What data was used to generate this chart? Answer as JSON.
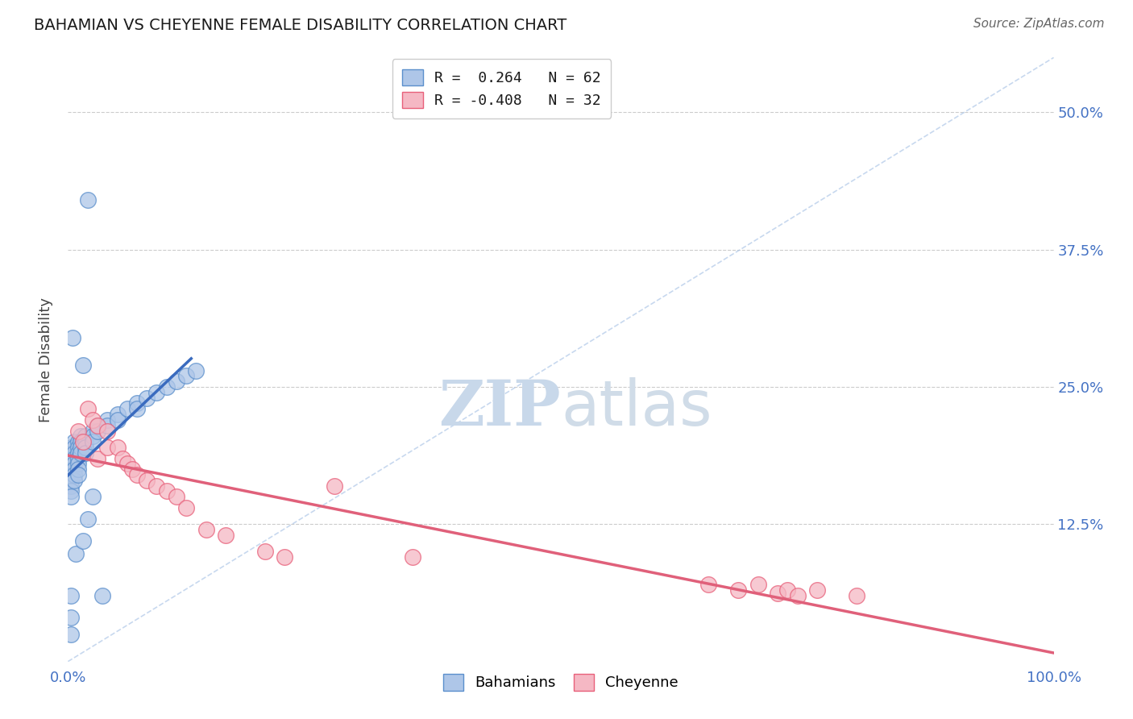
{
  "title": "BAHAMIAN VS CHEYENNE FEMALE DISABILITY CORRELATION CHART",
  "source": "Source: ZipAtlas.com",
  "ylabel": "Female Disability",
  "ytick_labels": [
    "50.0%",
    "37.5%",
    "25.0%",
    "12.5%"
  ],
  "ytick_values": [
    0.5,
    0.375,
    0.25,
    0.125
  ],
  "xlim": [
    0.0,
    1.0
  ],
  "ylim": [
    0.0,
    0.55
  ],
  "bahamian_R": 0.264,
  "bahamian_N": 62,
  "cheyenne_R": -0.408,
  "cheyenne_N": 32,
  "bahamian_color": "#aec6e8",
  "cheyenne_color": "#f5b8c4",
  "bahamian_edge_color": "#5b8fcc",
  "cheyenne_edge_color": "#e8607a",
  "bahamian_line_color": "#3a6bbf",
  "cheyenne_line_color": "#e0607a",
  "diagonal_color": "#b0c8e8",
  "background_color": "#ffffff",
  "watermark_zip": "ZIP",
  "watermark_atlas": "atlas",
  "legend_text_1": "R =  0.264   N = 62",
  "legend_text_2": "R = -0.408   N = 32",
  "bahamian_x": [
    0.003,
    0.003,
    0.003,
    0.003,
    0.003,
    0.003,
    0.003,
    0.003,
    0.003,
    0.003,
    0.006,
    0.006,
    0.006,
    0.006,
    0.006,
    0.006,
    0.006,
    0.006,
    0.01,
    0.01,
    0.01,
    0.01,
    0.01,
    0.01,
    0.01,
    0.013,
    0.013,
    0.013,
    0.013,
    0.018,
    0.018,
    0.018,
    0.018,
    0.025,
    0.025,
    0.025,
    0.03,
    0.03,
    0.04,
    0.04,
    0.05,
    0.05,
    0.06,
    0.07,
    0.07,
    0.08,
    0.09,
    0.1,
    0.11,
    0.12,
    0.13,
    0.02,
    0.005,
    0.008,
    0.003,
    0.003,
    0.003,
    0.015,
    0.015,
    0.02,
    0.025,
    0.035
  ],
  "bahamian_y": [
    0.195,
    0.19,
    0.185,
    0.18,
    0.175,
    0.17,
    0.165,
    0.16,
    0.155,
    0.15,
    0.2,
    0.195,
    0.19,
    0.185,
    0.18,
    0.175,
    0.17,
    0.165,
    0.2,
    0.195,
    0.19,
    0.185,
    0.18,
    0.175,
    0.17,
    0.205,
    0.2,
    0.195,
    0.19,
    0.205,
    0.2,
    0.195,
    0.19,
    0.21,
    0.205,
    0.2,
    0.215,
    0.21,
    0.22,
    0.215,
    0.225,
    0.22,
    0.23,
    0.235,
    0.23,
    0.24,
    0.245,
    0.25,
    0.255,
    0.26,
    0.265,
    0.42,
    0.295,
    0.098,
    0.06,
    0.04,
    0.025,
    0.27,
    0.11,
    0.13,
    0.15,
    0.06
  ],
  "cheyenne_x": [
    0.01,
    0.015,
    0.02,
    0.025,
    0.03,
    0.03,
    0.04,
    0.04,
    0.05,
    0.055,
    0.06,
    0.065,
    0.07,
    0.08,
    0.09,
    0.1,
    0.11,
    0.12,
    0.14,
    0.16,
    0.2,
    0.22,
    0.27,
    0.65,
    0.68,
    0.7,
    0.72,
    0.73,
    0.74,
    0.76,
    0.8,
    0.35
  ],
  "cheyenne_y": [
    0.21,
    0.2,
    0.23,
    0.22,
    0.215,
    0.185,
    0.21,
    0.195,
    0.195,
    0.185,
    0.18,
    0.175,
    0.17,
    0.165,
    0.16,
    0.155,
    0.15,
    0.14,
    0.12,
    0.115,
    0.1,
    0.095,
    0.16,
    0.07,
    0.065,
    0.07,
    0.062,
    0.065,
    0.06,
    0.065,
    0.06,
    0.095
  ]
}
